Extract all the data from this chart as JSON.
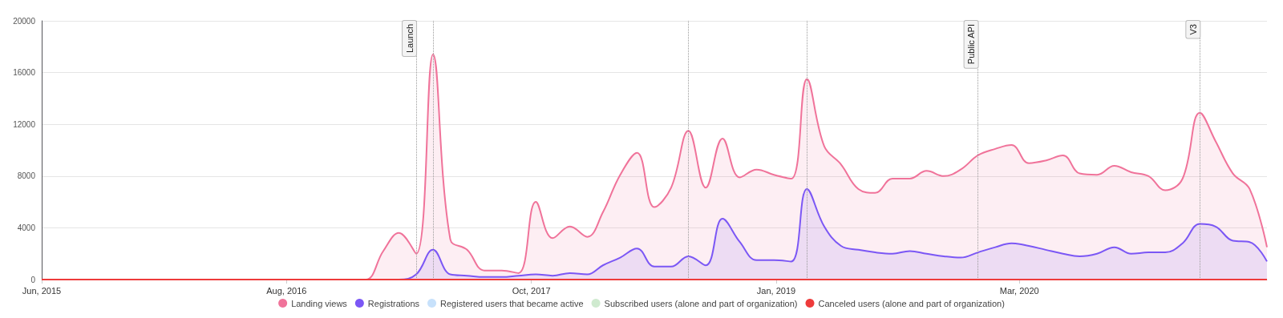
{
  "chart_data": {
    "type": "area",
    "x": [
      "2015-06",
      "2015-07",
      "2015-08",
      "2015-09",
      "2015-10",
      "2015-11",
      "2015-12",
      "2016-01",
      "2016-02",
      "2016-03",
      "2016-04",
      "2016-05",
      "2016-06",
      "2016-07",
      "2016-08",
      "2016-09",
      "2016-10",
      "2016-11",
      "2016-12",
      "2017-01",
      "2017-02",
      "2017-03",
      "2017-04",
      "2017-05",
      "2017-06",
      "2017-07",
      "2017-08",
      "2017-09",
      "2017-10",
      "2017-11",
      "2017-12",
      "2018-01",
      "2018-02",
      "2018-03",
      "2018-04",
      "2018-05",
      "2018-06",
      "2018-07",
      "2018-08",
      "2018-09",
      "2018-10",
      "2018-11",
      "2018-12",
      "2019-01",
      "2019-02",
      "2019-03",
      "2019-04",
      "2019-05",
      "2019-06",
      "2019-07",
      "2019-08",
      "2019-09",
      "2019-10",
      "2019-11",
      "2019-12",
      "2020-01",
      "2020-02",
      "2020-03",
      "2020-04",
      "2020-05",
      "2020-06",
      "2020-07",
      "2020-08",
      "2020-09",
      "2020-10",
      "2020-11",
      "2020-12",
      "2021-01",
      "2021-02",
      "2021-03",
      "2021-04",
      "2021-05",
      "2021-06"
    ],
    "series": [
      {
        "name": "Landing views",
        "color": "#f0739a",
        "values": [
          0,
          0,
          0,
          0,
          0,
          0,
          0,
          0,
          0,
          0,
          0,
          0,
          0,
          0,
          0,
          0,
          0,
          0,
          0,
          0,
          2200,
          3600,
          2000,
          17400,
          3100,
          2300,
          700,
          700,
          500,
          6000,
          3200,
          4100,
          3300,
          5200,
          8100,
          9800,
          5600,
          7100,
          11500,
          7100,
          10900,
          7900,
          8500,
          8100,
          7800,
          15500,
          10300,
          8900,
          7000,
          6700,
          7800,
          7800,
          8400,
          8000,
          8500,
          9600,
          10100,
          10400,
          9000,
          9200,
          9600,
          8200,
          8100,
          8800,
          8300,
          8000,
          6900,
          7800,
          12900,
          10700,
          8200,
          7000,
          2500
        ]
      },
      {
        "name": "Registrations",
        "color": "#7b57f5",
        "values": [
          0,
          0,
          0,
          0,
          0,
          0,
          0,
          0,
          0,
          0,
          0,
          0,
          0,
          0,
          0,
          0,
          0,
          0,
          0,
          0,
          0,
          0,
          400,
          2300,
          400,
          300,
          200,
          200,
          300,
          400,
          300,
          500,
          400,
          1100,
          1700,
          2400,
          1000,
          1000,
          1800,
          1100,
          4700,
          2900,
          1500,
          1500,
          1400,
          7000,
          4100,
          2600,
          2300,
          2100,
          2000,
          2200,
          2000,
          1800,
          1700,
          2100,
          2500,
          2800,
          2600,
          2300,
          2000,
          1800,
          2000,
          2500,
          2000,
          2100,
          2100,
          2800,
          4300,
          4100,
          3000,
          2900,
          1400
        ]
      },
      {
        "name": "Registered users that became active",
        "type": "line",
        "color": "#c7e1fb",
        "values": [
          null,
          null,
          null,
          null,
          null,
          null,
          null,
          null,
          null,
          null,
          null,
          null,
          null,
          null,
          null,
          null,
          null,
          null,
          null,
          null,
          null,
          null,
          null,
          null,
          null,
          null,
          null,
          null,
          null,
          null,
          null,
          null,
          null,
          null,
          null,
          null,
          null,
          null,
          null,
          null,
          null,
          null,
          null,
          null,
          null,
          null,
          null,
          null,
          null,
          null,
          null,
          null,
          null,
          null,
          null,
          null,
          null,
          null,
          null,
          null,
          null,
          null,
          null,
          null,
          null,
          null,
          null,
          null,
          null,
          null,
          null,
          null,
          null
        ]
      },
      {
        "name": "Subscribed users (alone and part of organization)",
        "type": "line",
        "color": "#cfeacf",
        "values": [
          null,
          null,
          null,
          null,
          null,
          null,
          null,
          null,
          null,
          null,
          null,
          null,
          null,
          null,
          null,
          null,
          null,
          null,
          null,
          null,
          null,
          null,
          null,
          null,
          null,
          null,
          null,
          null,
          null,
          null,
          null,
          null,
          null,
          null,
          null,
          null,
          null,
          null,
          null,
          null,
          null,
          null,
          null,
          null,
          null,
          null,
          null,
          null,
          null,
          null,
          null,
          null,
          null,
          null,
          null,
          null,
          null,
          null,
          null,
          null,
          null,
          null,
          null,
          null,
          null,
          null,
          null,
          null,
          null,
          null,
          null,
          null,
          null
        ]
      },
      {
        "name": "Canceled users (alone and part of organization)",
        "type": "line",
        "color": "#ee3b3b",
        "values": [
          0,
          0,
          0,
          0,
          0,
          0,
          0,
          0,
          0,
          0,
          0,
          0,
          0,
          0,
          0,
          0,
          0,
          0,
          0,
          0,
          0,
          0,
          0,
          0,
          0,
          0,
          0,
          0,
          0,
          0,
          0,
          0,
          0,
          0,
          0,
          0,
          0,
          0,
          0,
          0,
          0,
          0,
          0,
          0,
          0,
          0,
          0,
          0,
          0,
          0,
          0,
          0,
          0,
          0,
          0,
          0,
          0,
          0,
          0,
          0,
          0,
          0,
          0,
          0,
          0,
          0,
          0,
          0,
          0,
          0,
          0,
          0,
          0
        ]
      }
    ],
    "xlim": [
      "2015-06",
      "2021-06"
    ],
    "xticks": [
      {
        "value": "2015-06",
        "label": "Jun, 2015"
      },
      {
        "value": "2016-08-12",
        "label": "Aug, 2016"
      },
      {
        "value": "2017-10-24",
        "label": "Oct, 2017"
      },
      {
        "value": "2019-01-05",
        "label": "Jan, 2019"
      },
      {
        "value": "2020-03-15",
        "label": "Mar, 2020"
      }
    ],
    "ylim": [
      0,
      20000
    ],
    "yticks": [
      0,
      4000,
      8000,
      12000,
      16000,
      20000
    ],
    "ref_lines": [
      {
        "axis": "x",
        "value": "2017-04",
        "label": "Launch",
        "line_style": "dotted"
      },
      {
        "axis": "x",
        "value": "2017-05",
        "line_style": "dotted"
      },
      {
        "axis": "x",
        "value": "2018-08",
        "line_style": "dotted"
      },
      {
        "axis": "x",
        "value": "2019-03",
        "line_style": "dotted"
      },
      {
        "axis": "x",
        "value": "2020-01",
        "label": "Public API",
        "line_style": "dotted"
      },
      {
        "axis": "x",
        "value": "2021-02",
        "label": "V3",
        "line_style": "dotted"
      }
    ],
    "grid": "y",
    "legend": "bottom",
    "marker": "none",
    "line_style": "solid"
  }
}
